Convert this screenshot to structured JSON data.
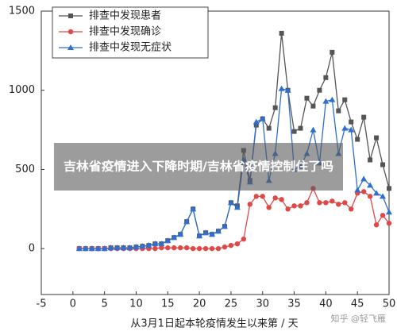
{
  "chart_data": {
    "type": "line",
    "x_label": "从3月1日起本轮疫情发生以来第 / 天",
    "x": [
      1,
      2,
      3,
      4,
      5,
      6,
      7,
      8,
      9,
      10,
      11,
      12,
      13,
      14,
      15,
      16,
      17,
      18,
      19,
      20,
      21,
      22,
      23,
      24,
      25,
      26,
      27,
      28,
      29,
      30,
      31,
      32,
      33,
      34,
      35,
      36,
      37,
      38,
      39,
      40,
      41,
      42,
      43,
      44,
      45,
      46,
      47,
      48,
      49,
      50
    ],
    "series": [
      {
        "name": "排查中发现患者",
        "color": "#555555",
        "marker": "square",
        "values": [
          0,
          0,
          0,
          0,
          0,
          5,
          5,
          5,
          5,
          10,
          15,
          20,
          30,
          30,
          50,
          70,
          90,
          170,
          250,
          80,
          100,
          90,
          110,
          140,
          290,
          270,
          620,
          430,
          780,
          820,
          760,
          890,
          1360,
          1000,
          740,
          760,
          950,
          900,
          1000,
          1080,
          1240,
          870,
          940,
          800,
          690,
          830,
          560,
          700,
          530,
          380
        ]
      },
      {
        "name": "排查中发现确诊",
        "color": "#e04848",
        "marker": "circle",
        "values": [
          0,
          0,
          0,
          0,
          0,
          0,
          0,
          0,
          0,
          0,
          0,
          0,
          0,
          5,
          5,
          5,
          5,
          5,
          0,
          0,
          0,
          0,
          0,
          10,
          20,
          30,
          60,
          280,
          330,
          330,
          260,
          320,
          310,
          250,
          270,
          270,
          290,
          380,
          290,
          290,
          300,
          280,
          290,
          250,
          350,
          360,
          330,
          150,
          210,
          160
        ]
      },
      {
        "name": "排查中发现无症状",
        "color": "#2f6fd0",
        "marker": "triangle",
        "values": [
          0,
          0,
          0,
          0,
          0,
          5,
          5,
          5,
          5,
          10,
          15,
          20,
          30,
          30,
          50,
          70,
          90,
          170,
          250,
          80,
          100,
          90,
          110,
          140,
          290,
          260,
          560,
          420,
          800,
          820,
          430,
          600,
          1010,
          1000,
          500,
          520,
          600,
          750,
          540,
          930,
          940,
          600,
          760,
          750,
          370,
          440,
          400,
          350,
          330,
          230
        ]
      }
    ],
    "xlim": [
      -5,
      50
    ],
    "xticks": [
      -5,
      0,
      5,
      10,
      15,
      20,
      25,
      30,
      35,
      40,
      45,
      50
    ],
    "ylim": [
      -290,
      1500
    ],
    "yticks": [
      0,
      500,
      1000,
      1500
    ],
    "legend": "upper-left",
    "overlay_title": "吉林省疫情进入下降时期/吉林省疫情控制住了吗",
    "watermark": "知乎 @轻飞雁"
  }
}
